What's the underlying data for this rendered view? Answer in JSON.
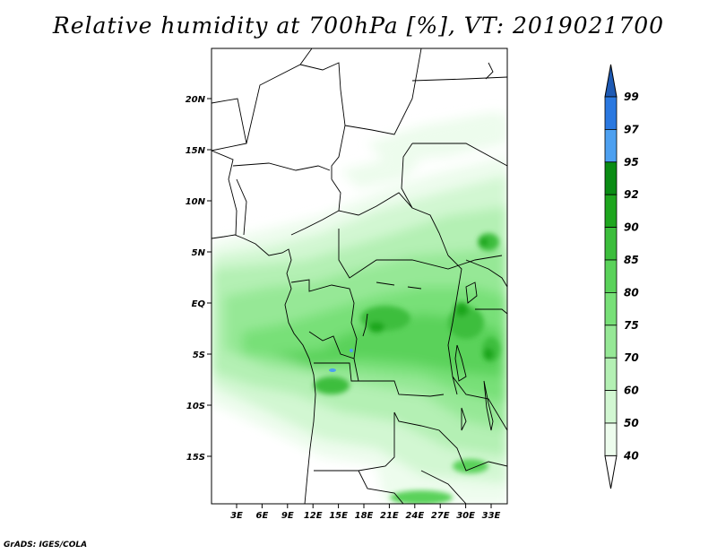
{
  "title": "Relative humidity at 700hPa [%], VT: 2019021700",
  "footer": "GrADS: IGES/COLA",
  "map": {
    "lat_ticks": [
      "20N",
      "15N",
      "10N",
      "5N",
      "EQ",
      "5S",
      "10S",
      "15S"
    ],
    "lon_ticks": [
      "3E",
      "6E",
      "9E",
      "12E",
      "15E",
      "18E",
      "21E",
      "24E",
      "27E",
      "30E",
      "33E"
    ]
  },
  "legend": {
    "levels": [
      "99",
      "97",
      "95",
      "92",
      "90",
      "85",
      "80",
      "75",
      "70",
      "60",
      "50",
      "40"
    ],
    "colors": [
      "#1e5ab4",
      "#2a78e0",
      "#4da0f0",
      "#0a8c14",
      "#1ea61e",
      "#3cbe3c",
      "#5ad25a",
      "#78e078",
      "#96e896",
      "#b4f0b4",
      "#d2f7d2",
      "#edfced"
    ]
  }
}
